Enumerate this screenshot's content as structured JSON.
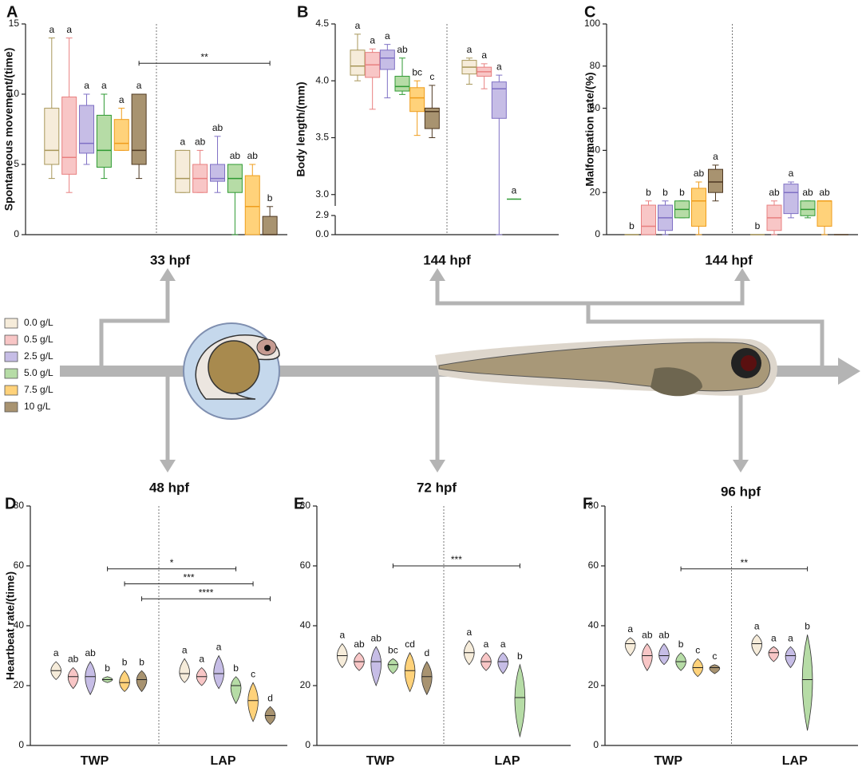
{
  "legend": {
    "items": [
      {
        "name": "0.0 g/L",
        "color": "#f6ecda",
        "edgecolor": "#a8975a"
      },
      {
        "name": "0.5 g/L",
        "color": "#f8c6c6",
        "edgecolor": "#e88080"
      },
      {
        "name": "2.5 g/L",
        "color": "#c6bde6",
        "edgecolor": "#7f70c4"
      },
      {
        "name": "5.0 g/L",
        "color": "#b6dca6",
        "edgecolor": "#2f9a33"
      },
      {
        "name": "7.5 g/L",
        "color": "#ffd27a",
        "edgecolor": "#ef9d1c"
      },
      {
        "name": "10  g/L",
        "color": "#a89370",
        "edgecolor": "#4e3822"
      }
    ]
  },
  "chart_data": [
    {
      "type": "box",
      "panel": "A",
      "time": "33 hpf",
      "ylabel": "Spontaneous movement/(time)",
      "ylim": [
        0,
        15
      ],
      "yticks": [
        0,
        5,
        10,
        15
      ],
      "series": [
        {
          "values": [
            {
              "min": 4,
              "q1": 5,
              "median": 6,
              "q3": 9,
              "max": 14
            },
            {
              "min": 3,
              "q1": 3,
              "median": 4,
              "q3": 6,
              "max": 6
            }
          ],
          "letters": [
            "a",
            "a"
          ]
        },
        {
          "values": [
            {
              "min": 3,
              "q1": 4.3,
              "median": 5.5,
              "q3": 9.8,
              "max": 14
            },
            {
              "min": 3,
              "q1": 3,
              "median": 4,
              "q3": 5,
              "max": 6
            }
          ],
          "letters": [
            "a",
            "ab"
          ]
        },
        {
          "values": [
            {
              "min": 5,
              "q1": 5.8,
              "median": 6.5,
              "q3": 9.2,
              "max": 10
            },
            {
              "min": 3,
              "q1": 3.8,
              "median": 4,
              "q3": 5,
              "max": 7
            }
          ],
          "letters": [
            "a",
            "ab"
          ]
        },
        {
          "values": [
            {
              "min": 4,
              "q1": 4.8,
              "median": 6,
              "q3": 8.5,
              "max": 10
            },
            {
              "min": 0,
              "q1": 3,
              "median": 4,
              "q3": 5,
              "max": 5
            }
          ],
          "letters": [
            "a",
            "ab"
          ]
        },
        {
          "values": [
            {
              "min": 6,
              "q1": 6,
              "median": 6.5,
              "q3": 8.2,
              "max": 9
            },
            {
              "min": 0,
              "q1": 0,
              "median": 2,
              "q3": 4.2,
              "max": 5
            }
          ],
          "letters": [
            "a",
            "ab"
          ]
        },
        {
          "values": [
            {
              "min": 4,
              "q1": 5,
              "median": 6,
              "q3": 10,
              "max": 10
            },
            {
              "min": 0,
              "q1": 0,
              "median": 0,
              "q3": 1.3,
              "max": 2
            }
          ],
          "letters": [
            "a",
            "b"
          ]
        }
      ],
      "significance": [
        {
          "text": "**",
          "series": 5,
          "y": 12.2
        }
      ]
    },
    {
      "type": "box",
      "panel": "B",
      "time": "144 hpf",
      "ylabel": "Body length/(mm)",
      "ylim": [
        0,
        4.5
      ],
      "ybreak": 2.9,
      "yticks": [
        {
          "value": 0,
          "label": "0.0"
        },
        2.9,
        {
          "value": 3,
          "label": "3.0"
        },
        3.5,
        {
          "value": 4,
          "label": "4.0"
        },
        4.5
      ],
      "series": [
        {
          "values": [
            {
              "min": 4.0,
              "q1": 4.05,
              "median": 4.13,
              "q3": 4.27,
              "max": 4.41
            },
            {
              "min": 3.97,
              "q1": 4.06,
              "median": 4.12,
              "q3": 4.18,
              "max": 4.2
            }
          ],
          "letters": [
            "a",
            "a"
          ]
        },
        {
          "values": [
            {
              "min": 3.75,
              "q1": 4.03,
              "median": 4.14,
              "q3": 4.25,
              "max": 4.28
            },
            {
              "min": 3.93,
              "q1": 4.04,
              "median": 4.08,
              "q3": 4.12,
              "max": 4.15
            }
          ],
          "letters": [
            "a",
            "a"
          ]
        },
        {
          "values": [
            {
              "min": 3.85,
              "q1": 4.1,
              "median": 4.2,
              "q3": 4.27,
              "max": 4.32
            },
            {
              "min": 0.0,
              "q1": 3.67,
              "median": 3.93,
              "q3": 3.99,
              "max": 4.05
            }
          ],
          "letters": [
            "a",
            "a"
          ]
        },
        {
          "values": [
            {
              "min": 3.88,
              "q1": 3.91,
              "median": 3.95,
              "q3": 4.04,
              "max": 4.2
            },
            {
              "min": 2.96,
              "q1": 2.96,
              "median": 2.96,
              "q3": 2.96,
              "max": 2.96
            }
          ],
          "letters": [
            "ab",
            "a"
          ]
        },
        {
          "values": [
            {
              "min": 3.52,
              "q1": 3.73,
              "median": 3.85,
              "q3": 3.94,
              "max": 4.0
            },
            null
          ],
          "letters": [
            "bc",
            null
          ]
        },
        {
          "values": [
            {
              "min": 3.5,
              "q1": 3.58,
              "median": 3.73,
              "q3": 3.76,
              "max": 3.96
            },
            null
          ],
          "letters": [
            "c",
            null
          ]
        }
      ],
      "significance": []
    },
    {
      "type": "box",
      "panel": "C",
      "time": "144 hpf",
      "ylabel": "Malformation rate/(%)",
      "ylim": [
        0,
        100
      ],
      "yticks": [
        0,
        20,
        40,
        60,
        80,
        100
      ],
      "series": [
        {
          "values": [
            {
              "min": 0,
              "q1": 0,
              "median": 0,
              "q3": 0,
              "max": 0
            },
            {
              "min": 0,
              "q1": 0,
              "median": 0,
              "q3": 0,
              "max": 0
            }
          ],
          "letters": [
            "b",
            "b"
          ]
        },
        {
          "values": [
            {
              "min": 0,
              "q1": 0,
              "median": 4,
              "q3": 14,
              "max": 16
            },
            {
              "min": 0,
              "q1": 2,
              "median": 8,
              "q3": 14,
              "max": 16
            }
          ],
          "letters": [
            "b",
            "ab"
          ]
        },
        {
          "values": [
            {
              "min": 0,
              "q1": 2,
              "median": 8,
              "q3": 14,
              "max": 16
            },
            {
              "min": 8,
              "q1": 10,
              "median": 20,
              "q3": 24,
              "max": 25
            }
          ],
          "letters": [
            "b",
            "a"
          ]
        },
        {
          "values": [
            {
              "min": 8,
              "q1": 8,
              "median": 12,
              "q3": 16,
              "max": 16
            },
            {
              "min": 8,
              "q1": 9,
              "median": 12,
              "q3": 16,
              "max": 16
            }
          ],
          "letters": [
            "b",
            "ab"
          ]
        },
        {
          "values": [
            {
              "min": 0,
              "q1": 4,
              "median": 16,
              "q3": 22,
              "max": 25
            },
            {
              "min": 0,
              "q1": 4,
              "median": 16,
              "q3": 16,
              "max": 16
            }
          ],
          "letters": [
            "ab",
            "ab"
          ]
        },
        {
          "values": [
            {
              "min": 16,
              "q1": 20,
              "median": 25,
              "q3": 31,
              "max": 33
            },
            {
              "min": 0,
              "q1": 0,
              "median": 0,
              "q3": 0,
              "max": 0
            }
          ],
          "letters": [
            "a",
            null
          ]
        }
      ],
      "significance": []
    },
    {
      "type": "violin",
      "panel": "D",
      "time": "48 hpf",
      "ylabel": "Heartbeat rate/(time)",
      "categories": [
        "TWP",
        "LAP"
      ],
      "ylim": [
        0,
        80
      ],
      "yticks": [
        0,
        20,
        40,
        60,
        80
      ],
      "series": [
        {
          "values": [
            {
              "min": 22,
              "median": 25,
              "max": 28
            },
            {
              "min": 21,
              "median": 24,
              "max": 29
            }
          ],
          "letters": [
            "a",
            "a"
          ]
        },
        {
          "values": [
            {
              "min": 19,
              "median": 23,
              "max": 26
            },
            {
              "min": 20,
              "median": 23,
              "max": 26
            }
          ],
          "letters": [
            "ab",
            "a"
          ]
        },
        {
          "values": [
            {
              "min": 17,
              "median": 23,
              "max": 28
            },
            {
              "min": 19,
              "median": 24,
              "max": 30
            }
          ],
          "letters": [
            "ab",
            "a"
          ]
        },
        {
          "values": [
            {
              "min": 21,
              "median": 22,
              "max": 23
            },
            {
              "min": 14,
              "median": 20,
              "max": 23
            }
          ],
          "letters": [
            "b",
            "b"
          ]
        },
        {
          "values": [
            {
              "min": 18,
              "median": 21,
              "max": 25
            },
            {
              "min": 8,
              "median": 15,
              "max": 21
            }
          ],
          "letters": [
            "b",
            "c"
          ]
        },
        {
          "values": [
            {
              "min": 18,
              "median": 22,
              "max": 25
            },
            {
              "min": 7,
              "median": 10,
              "max": 13
            }
          ],
          "letters": [
            "b",
            "d"
          ]
        }
      ],
      "significance": [
        {
          "text": "*",
          "series": 3,
          "y": 59
        },
        {
          "text": "***",
          "series": 4,
          "y": 54
        },
        {
          "text": "****",
          "series": 5,
          "y": 49
        }
      ]
    },
    {
      "type": "violin",
      "panel": "E",
      "time": "72 hpf",
      "categories": [
        "TWP",
        "LAP"
      ],
      "ylim": [
        0,
        80
      ],
      "yticks": [
        0,
        20,
        40,
        60,
        80
      ],
      "series": [
        {
          "values": [
            {
              "min": 26,
              "median": 30,
              "max": 34
            },
            {
              "min": 27,
              "median": 31,
              "max": 35
            }
          ],
          "letters": [
            "a",
            "a"
          ]
        },
        {
          "values": [
            {
              "min": 25,
              "median": 28,
              "max": 31
            },
            {
              "min": 25,
              "median": 28,
              "max": 31
            }
          ],
          "letters": [
            "ab",
            "a"
          ]
        },
        {
          "values": [
            {
              "min": 20,
              "median": 28,
              "max": 33
            },
            {
              "min": 24,
              "median": 28,
              "max": 31
            }
          ],
          "letters": [
            "ab",
            "a"
          ]
        },
        {
          "values": [
            {
              "min": 24,
              "median": 27,
              "max": 29
            },
            {
              "min": 3,
              "median": 16,
              "max": 27
            }
          ],
          "letters": [
            "bc",
            "b"
          ]
        },
        {
          "values": [
            {
              "min": 18,
              "median": 25,
              "max": 31
            },
            null
          ],
          "letters": [
            "cd",
            null
          ]
        },
        {
          "values": [
            {
              "min": 17,
              "median": 23,
              "max": 28
            },
            null
          ],
          "letters": [
            "d",
            null
          ]
        }
      ],
      "significance": [
        {
          "text": "***",
          "series": 3,
          "y": 60
        }
      ]
    },
    {
      "type": "violin",
      "panel": "F",
      "time": "96 hpf",
      "categories": [
        "TWP",
        "LAP"
      ],
      "ylim": [
        0,
        80
      ],
      "yticks": [
        0,
        20,
        40,
        60,
        80
      ],
      "series": [
        {
          "values": [
            {
              "min": 30,
              "median": 34,
              "max": 36
            },
            {
              "min": 30,
              "median": 34,
              "max": 37
            }
          ],
          "letters": [
            "a",
            "a"
          ]
        },
        {
          "values": [
            {
              "min": 25,
              "median": 30,
              "max": 34
            },
            {
              "min": 28,
              "median": 31,
              "max": 33
            }
          ],
          "letters": [
            "ab",
            "a"
          ]
        },
        {
          "values": [
            {
              "min": 27,
              "median": 30,
              "max": 34
            },
            {
              "min": 26,
              "median": 30,
              "max": 33
            }
          ],
          "letters": [
            "ab",
            "a"
          ]
        },
        {
          "values": [
            {
              "min": 25,
              "median": 28,
              "max": 31
            },
            {
              "min": 5,
              "median": 22,
              "max": 37
            }
          ],
          "letters": [
            "b",
            "b"
          ]
        },
        {
          "values": [
            {
              "min": 23,
              "median": 26,
              "max": 29
            },
            null
          ],
          "letters": [
            "c",
            null
          ]
        },
        {
          "values": [
            {
              "min": 24,
              "median": 26,
              "max": 27
            },
            null
          ],
          "letters": [
            "c",
            null
          ]
        }
      ],
      "significance": [
        {
          "text": "**",
          "series": 3,
          "y": 59
        }
      ]
    }
  ]
}
